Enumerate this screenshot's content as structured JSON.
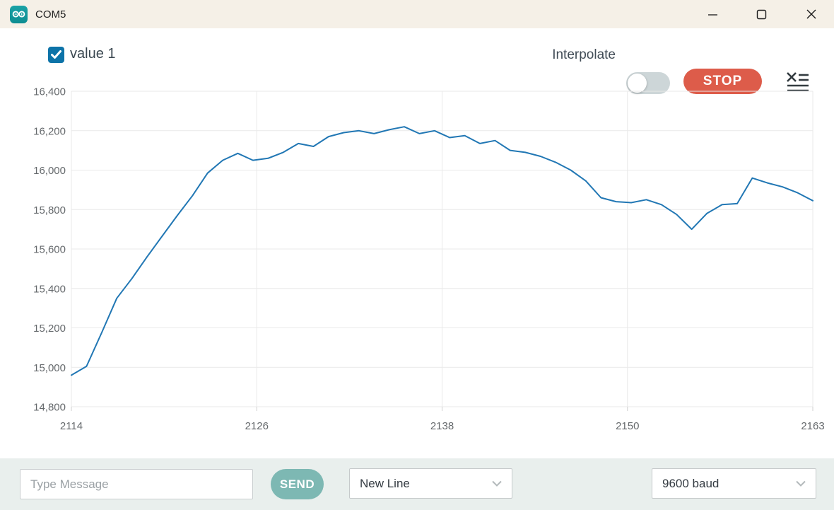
{
  "titlebar": {
    "title": "COM5"
  },
  "legend": {
    "label": "value 1",
    "checked": true
  },
  "controls": {
    "interpolate_label": "Interpolate",
    "interpolate_on": false,
    "stop_label": "STOP"
  },
  "message_bar": {
    "placeholder": "Type Message",
    "send_label": "SEND",
    "line_ending_value": "New Line",
    "baud_value": "9600 baud"
  },
  "colors": {
    "titlebar_bg": "#f5f0e7",
    "footer_bg": "#e9efed",
    "checkbox_blue": "#0d73a8",
    "stop_red": "#dd5c4a",
    "send_teal": "#7db8b3",
    "series_blue": "#2177b4",
    "grid": "#e9e9e9",
    "axis_text": "#65696c"
  },
  "chart_data": {
    "type": "line",
    "title": "",
    "xlabel": "",
    "ylabel": "",
    "ylim": [
      14800,
      16400
    ],
    "ytick_step": 200,
    "xticks": [
      2114,
      2126,
      2138,
      2150,
      2163
    ],
    "grid": true,
    "legend_position": "top-left",
    "x": [
      2114,
      2115,
      2116,
      2117,
      2118,
      2119,
      2120,
      2121,
      2122,
      2123,
      2124,
      2125,
      2126,
      2127,
      2128,
      2129,
      2130,
      2131,
      2132,
      2133,
      2134,
      2135,
      2136,
      2137,
      2138,
      2139,
      2140,
      2141,
      2142,
      2143,
      2144,
      2145,
      2146,
      2147,
      2148,
      2149,
      2150,
      2151,
      2152,
      2153,
      2154,
      2155,
      2156,
      2157,
      2158,
      2159,
      2160,
      2161,
      2162,
      2163
    ],
    "series": [
      {
        "name": "value 1",
        "color": "#2177b4",
        "values": [
          14960,
          15005,
          15175,
          15350,
          15450,
          15560,
          15665,
          15770,
          15870,
          15985,
          16050,
          16085,
          16050,
          16060,
          16090,
          16135,
          16120,
          16170,
          16190,
          16200,
          16185,
          16205,
          16220,
          16185,
          16200,
          16165,
          16175,
          16135,
          16150,
          16100,
          16090,
          16070,
          16040,
          16000,
          15945,
          15860,
          15840,
          15835,
          15850,
          15825,
          15775,
          15700,
          15780,
          15825,
          15830,
          15960,
          15935,
          15915,
          15885,
          15845
        ]
      }
    ]
  }
}
